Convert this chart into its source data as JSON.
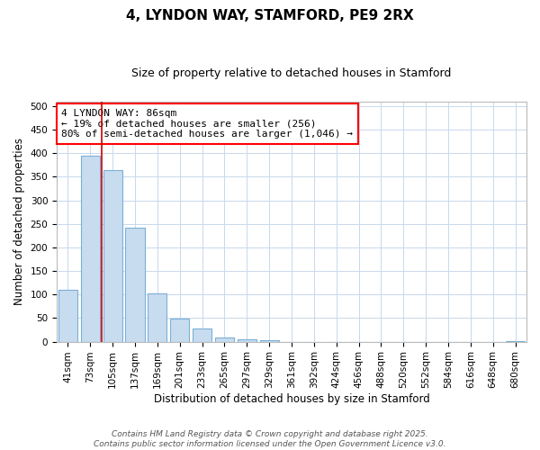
{
  "title": "4, LYNDON WAY, STAMFORD, PE9 2RX",
  "subtitle": "Size of property relative to detached houses in Stamford",
  "xlabel": "Distribution of detached houses by size in Stamford",
  "ylabel": "Number of detached properties",
  "footer_line1": "Contains HM Land Registry data © Crown copyright and database right 2025.",
  "footer_line2": "Contains public sector information licensed under the Open Government Licence v3.0.",
  "categories": [
    "41sqm",
    "73sqm",
    "105sqm",
    "137sqm",
    "169sqm",
    "201sqm",
    "233sqm",
    "265sqm",
    "297sqm",
    "329sqm",
    "361sqm",
    "392sqm",
    "424sqm",
    "456sqm",
    "488sqm",
    "520sqm",
    "552sqm",
    "584sqm",
    "616sqm",
    "648sqm",
    "680sqm"
  ],
  "bar_values": [
    110,
    395,
    365,
    242,
    103,
    48,
    28,
    8,
    5,
    3,
    0,
    0,
    0,
    0,
    0,
    0,
    0,
    0,
    0,
    0,
    2
  ],
  "bar_color": "#c8dcf0",
  "bar_edge_color": "#7ab0d8",
  "grid_color": "#c8d8ec",
  "background_color": "#ffffff",
  "plot_bg_color": "#ffffff",
  "red_line_x": 1.5,
  "annotation_line1": "4 LYNDON WAY: 86sqm",
  "annotation_line2": "← 19% of detached houses are smaller (256)",
  "annotation_line3": "80% of semi-detached houses are larger (1,046) →",
  "ylim": [
    0,
    510
  ],
  "yticks": [
    0,
    50,
    100,
    150,
    200,
    250,
    300,
    350,
    400,
    450,
    500
  ],
  "red_line_color": "#cc0000",
  "title_fontsize": 11,
  "subtitle_fontsize": 9,
  "axis_label_fontsize": 8.5,
  "tick_fontsize": 7.5,
  "footer_fontsize": 6.5,
  "annot_fontsize": 8
}
